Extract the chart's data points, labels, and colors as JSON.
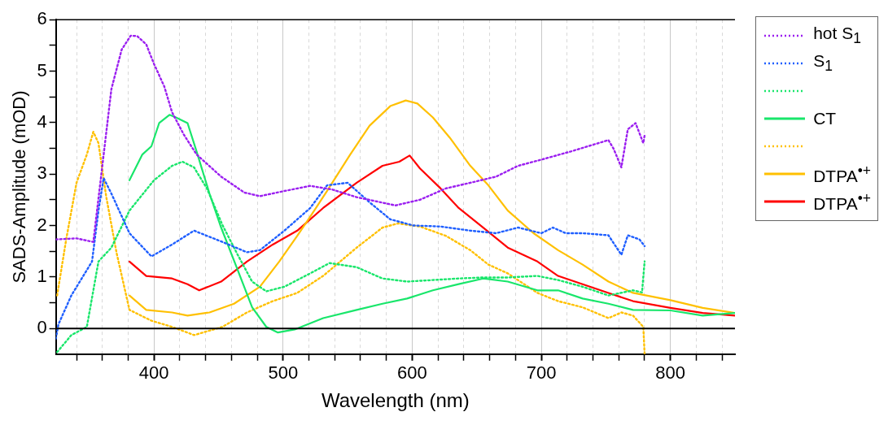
{
  "chart_data": {
    "type": "line",
    "xlabel": "Wavelength (nm)",
    "ylabel": "SADS-Amplitude (mOD)",
    "xlim": [
      324,
      850
    ],
    "ylim": [
      -0.5,
      6
    ],
    "xticks": [
      {
        "value": 340,
        "label": null
      },
      {
        "value": 360,
        "label": null
      },
      {
        "value": 380,
        "label": null
      },
      400,
      {
        "value": 420,
        "label": null
      },
      {
        "value": 440,
        "label": null
      },
      {
        "value": 460,
        "label": null
      },
      {
        "value": 480,
        "label": null
      },
      500,
      {
        "value": 520,
        "label": null
      },
      {
        "value": 540,
        "label": null
      },
      {
        "value": 560,
        "label": null
      },
      {
        "value": 580,
        "label": null
      },
      600,
      {
        "value": 620,
        "label": null
      },
      {
        "value": 640,
        "label": null
      },
      {
        "value": 660,
        "label": null
      },
      {
        "value": 680,
        "label": null
      },
      700,
      {
        "value": 720,
        "label": null
      },
      {
        "value": 740,
        "label": null
      },
      {
        "value": 760,
        "label": null
      },
      {
        "value": 780,
        "label": null
      },
      800,
      {
        "value": 820,
        "label": null
      },
      {
        "value": 840,
        "label": null
      }
    ],
    "yticks": [
      0,
      {
        "value": 0.5,
        "label": null
      },
      1,
      {
        "value": 1.5,
        "label": null
      },
      2,
      {
        "value": 2.5,
        "label": null
      },
      3,
      {
        "value": 3.5,
        "label": null
      },
      4,
      {
        "value": 4.5,
        "label": null
      },
      5,
      {
        "value": 5.5,
        "label": null
      },
      6
    ],
    "grid": "x",
    "legend": "right",
    "marker": "none",
    "ref_lines": [
      {
        "axis": "y",
        "value": 0,
        "color": "#000000"
      }
    ],
    "series": [
      {
        "name": "hot S$_{1}$",
        "color": "#9b1ff0",
        "line_style": "dotted",
        "x": [
          324,
          340,
          353,
          359,
          367,
          375,
          382,
          387,
          394,
          400,
          408,
          414,
          423,
          433,
          452,
          470,
          482,
          501,
          521,
          538,
          557,
          587,
          606,
          626,
          645,
          665,
          682,
          700,
          723,
          752,
          756,
          762,
          767,
          773,
          779,
          780
        ],
        "values": [
          1.73,
          1.75,
          1.68,
          2.95,
          4.65,
          5.42,
          5.69,
          5.68,
          5.52,
          5.14,
          4.7,
          4.2,
          3.77,
          3.38,
          2.95,
          2.64,
          2.57,
          2.67,
          2.77,
          2.7,
          2.55,
          2.39,
          2.5,
          2.72,
          2.83,
          2.95,
          3.16,
          3.28,
          3.44,
          3.66,
          3.49,
          3.13,
          3.87,
          3.99,
          3.6,
          3.75
        ]
      },
      {
        "name": "S$_{1}$",
        "color": "#1f5fff",
        "line_style": "dotted",
        "x": [
          324,
          326,
          336,
          352,
          357,
          361,
          367,
          381,
          398,
          414,
          431,
          453,
          472,
          482,
          501,
          521,
          534,
          550,
          567,
          583,
          601,
          622,
          645,
          665,
          682,
          700,
          709,
          719,
          732,
          752,
          762,
          767,
          776,
          780
        ],
        "values": [
          -0.2,
          0.08,
          0.64,
          1.3,
          2.29,
          2.92,
          2.62,
          1.85,
          1.4,
          1.63,
          1.9,
          1.68,
          1.48,
          1.52,
          1.9,
          2.34,
          2.78,
          2.83,
          2.45,
          2.12,
          2.0,
          1.98,
          1.9,
          1.85,
          1.96,
          1.85,
          1.96,
          1.85,
          1.85,
          1.81,
          1.43,
          1.81,
          1.73,
          1.6
        ]
      },
      {
        "color": "#19e66b",
        "line_style": "dotted",
        "x": [
          325,
          336,
          348,
          357,
          367,
          381,
          400,
          414,
          422,
          431,
          441,
          453,
          464,
          476,
          487,
          501,
          521,
          536,
          557,
          577,
          596,
          616,
          636,
          655,
          674,
          697,
          713,
          732,
          752,
          771,
          778,
          780
        ],
        "values": [
          -0.46,
          -0.13,
          0.03,
          1.3,
          1.57,
          2.29,
          2.88,
          3.16,
          3.24,
          3.13,
          2.72,
          2.01,
          1.47,
          0.91,
          0.72,
          0.81,
          1.07,
          1.27,
          1.19,
          0.97,
          0.91,
          0.94,
          0.97,
          0.99,
          0.99,
          1.02,
          0.94,
          0.81,
          0.64,
          0.74,
          0.7,
          1.3
        ]
      },
      {
        "name": "CT",
        "color": "#19e66b",
        "line_style": "solid",
        "x": [
          381,
          391,
          398,
          404,
          412,
          417,
          426,
          433,
          443,
          452,
          464,
          476,
          487,
          496,
          509,
          531,
          557,
          577,
          596,
          616,
          636,
          655,
          674,
          697,
          713,
          732,
          752,
          771,
          800,
          825,
          850
        ],
        "values": [
          2.88,
          3.38,
          3.54,
          3.99,
          4.15,
          4.1,
          3.99,
          3.44,
          2.62,
          1.96,
          1.19,
          0.41,
          0.03,
          -0.08,
          -0.02,
          0.2,
          0.36,
          0.48,
          0.58,
          0.74,
          0.86,
          0.97,
          0.91,
          0.74,
          0.74,
          0.58,
          0.48,
          0.36,
          0.35,
          0.25,
          0.3
        ]
      },
      {
        "color": "#ffc000",
        "line_style": "dotted",
        "x": [
          325,
          332,
          340,
          348,
          353,
          357,
          363,
          371,
          381,
          398,
          414,
          431,
          453,
          472,
          492,
          511,
          531,
          557,
          577,
          589,
          606,
          626,
          645,
          659,
          674,
          697,
          713,
          732,
          752,
          762,
          771,
          779,
          780
        ],
        "values": [
          0.64,
          1.73,
          2.83,
          3.38,
          3.82,
          3.6,
          2.56,
          1.47,
          0.36,
          0.15,
          0.03,
          -0.13,
          0.03,
          0.31,
          0.53,
          0.69,
          1.02,
          1.57,
          1.96,
          2.04,
          1.98,
          1.8,
          1.52,
          1.24,
          1.07,
          0.69,
          0.53,
          0.41,
          0.2,
          0.31,
          0.25,
          0.03,
          -0.5
        ]
      },
      {
        "name": "DTPA$^{•+}$",
        "color": "#ffc000",
        "line_style": "solid",
        "x": [
          381,
          394,
          414,
          426,
          443,
          462,
          482,
          497,
          511,
          521,
          534,
          552,
          567,
          583,
          595,
          604,
          616,
          629,
          645,
          659,
          674,
          694,
          713,
          732,
          752,
          771,
          800,
          825,
          850
        ],
        "values": [
          0.64,
          0.36,
          0.31,
          0.25,
          0.31,
          0.48,
          0.81,
          1.3,
          1.8,
          2.17,
          2.67,
          3.38,
          3.94,
          4.32,
          4.43,
          4.37,
          4.1,
          3.71,
          3.16,
          2.78,
          2.29,
          1.85,
          1.52,
          1.24,
          0.91,
          0.69,
          0.55,
          0.4,
          0.3
        ]
      },
      {
        "name": "DTPA$^{•+}$",
        "color": "#ff0000",
        "line_style": "solid",
        "x": [
          381,
          394,
          414,
          426,
          435,
          452,
          472,
          492,
          511,
          531,
          557,
          577,
          590,
          598,
          606,
          622,
          636,
          655,
          674,
          697,
          713,
          732,
          752,
          771,
          800,
          825,
          850
        ],
        "values": [
          1.3,
          1.02,
          0.97,
          0.86,
          0.74,
          0.91,
          1.3,
          1.63,
          1.9,
          2.34,
          2.83,
          3.16,
          3.24,
          3.36,
          3.11,
          2.72,
          2.34,
          1.96,
          1.57,
          1.3,
          1.02,
          0.86,
          0.69,
          0.53,
          0.4,
          0.3,
          0.25
        ]
      }
    ]
  }
}
